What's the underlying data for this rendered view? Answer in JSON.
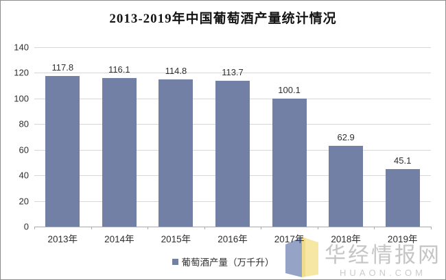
{
  "title": "2013-2019年中国葡萄酒产量统计情况",
  "chart_data": {
    "type": "bar",
    "title": "2013-2019年中国葡萄酒产量统计情况",
    "categories": [
      "2013年",
      "2014年",
      "2015年",
      "2016年",
      "2017年",
      "2018年",
      "2019年"
    ],
    "series": [
      {
        "name": "葡萄酒产量（万千升）",
        "values": [
          117.8,
          116.1,
          114.8,
          113.7,
          100.1,
          62.9,
          45.1
        ]
      }
    ],
    "value_labels": [
      "117.8",
      "116.1",
      "114.8",
      "113.7",
      "100.1",
      "62.9",
      "45.1"
    ],
    "xlabel": "",
    "ylabel": "",
    "ylim": [
      0,
      140
    ],
    "yticks": [
      0,
      20,
      40,
      60,
      80,
      100,
      120,
      140
    ],
    "grid": true,
    "legend_position": "bottom",
    "bar_color": "#7280A6",
    "gridline_color": "#d6d6d6",
    "axis_color": "#a8a8a8",
    "label_color": "#2e2e2e"
  },
  "legend": {
    "label": "葡萄酒产量（万千升）",
    "marker_color": "#7280A6"
  },
  "watermark": {
    "name": "华经情报网",
    "domain": "HUAON.COM",
    "text_color": "#c5c5c5",
    "logo_left_color": "#95A3C6",
    "logo_right_color": "#F6E8A4"
  }
}
